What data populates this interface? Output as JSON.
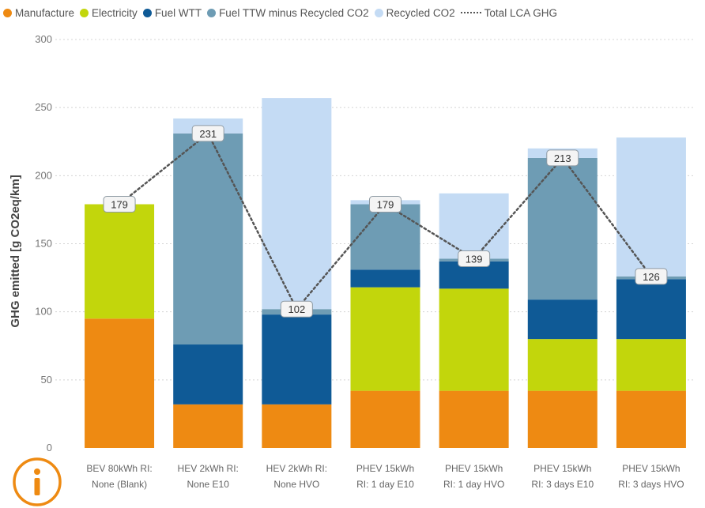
{
  "chart_data": {
    "type": "bar",
    "stacked": true,
    "ylabel": "GHG emitted [g CO2eq/km]",
    "ylim": [
      0,
      300
    ],
    "yticks": [
      0,
      50,
      100,
      150,
      200,
      250,
      300
    ],
    "grid": true,
    "legend_position": "top",
    "categories": [
      [
        "BEV 80kWh RI:",
        "None (Blank)"
      ],
      [
        "HEV 2kWh RI:",
        "None E10"
      ],
      [
        "HEV 2kWh RI:",
        "None HVO"
      ],
      [
        "PHEV 15kWh",
        "RI: 1 day E10"
      ],
      [
        "PHEV 15kWh",
        "RI: 1 day HVO"
      ],
      [
        "PHEV 15kWh",
        "RI: 3 days E10"
      ],
      [
        "PHEV 15kWh",
        "RI: 3 days HVO"
      ]
    ],
    "series": [
      {
        "name": "Manufacture",
        "color": "#ee8a12",
        "values": [
          95,
          32,
          32,
          42,
          42,
          42,
          42
        ]
      },
      {
        "name": "Electricity",
        "color": "#c2d60c",
        "values": [
          84,
          0,
          0,
          76,
          75,
          38,
          38
        ]
      },
      {
        "name": "Fuel WTT",
        "color": "#0f5a96",
        "values": [
          0,
          44,
          66,
          13,
          20,
          29,
          44
        ]
      },
      {
        "name": "Fuel TTW minus Recycled CO2",
        "color": "#6e9cb4",
        "values": [
          0,
          155,
          4,
          48,
          2,
          104,
          2
        ]
      },
      {
        "name": "Recycled CO2",
        "color": "#c4dbf4",
        "values": [
          0,
          11,
          155,
          3,
          48,
          7,
          102
        ]
      }
    ],
    "line_series": {
      "name": "Total LCA GHG",
      "color": "#555555",
      "style": "dotted",
      "values": [
        179,
        231,
        102,
        179,
        139,
        213,
        126
      ],
      "labels": [
        "179",
        "231",
        "102",
        "179",
        "139",
        "213",
        "126"
      ]
    }
  }
}
